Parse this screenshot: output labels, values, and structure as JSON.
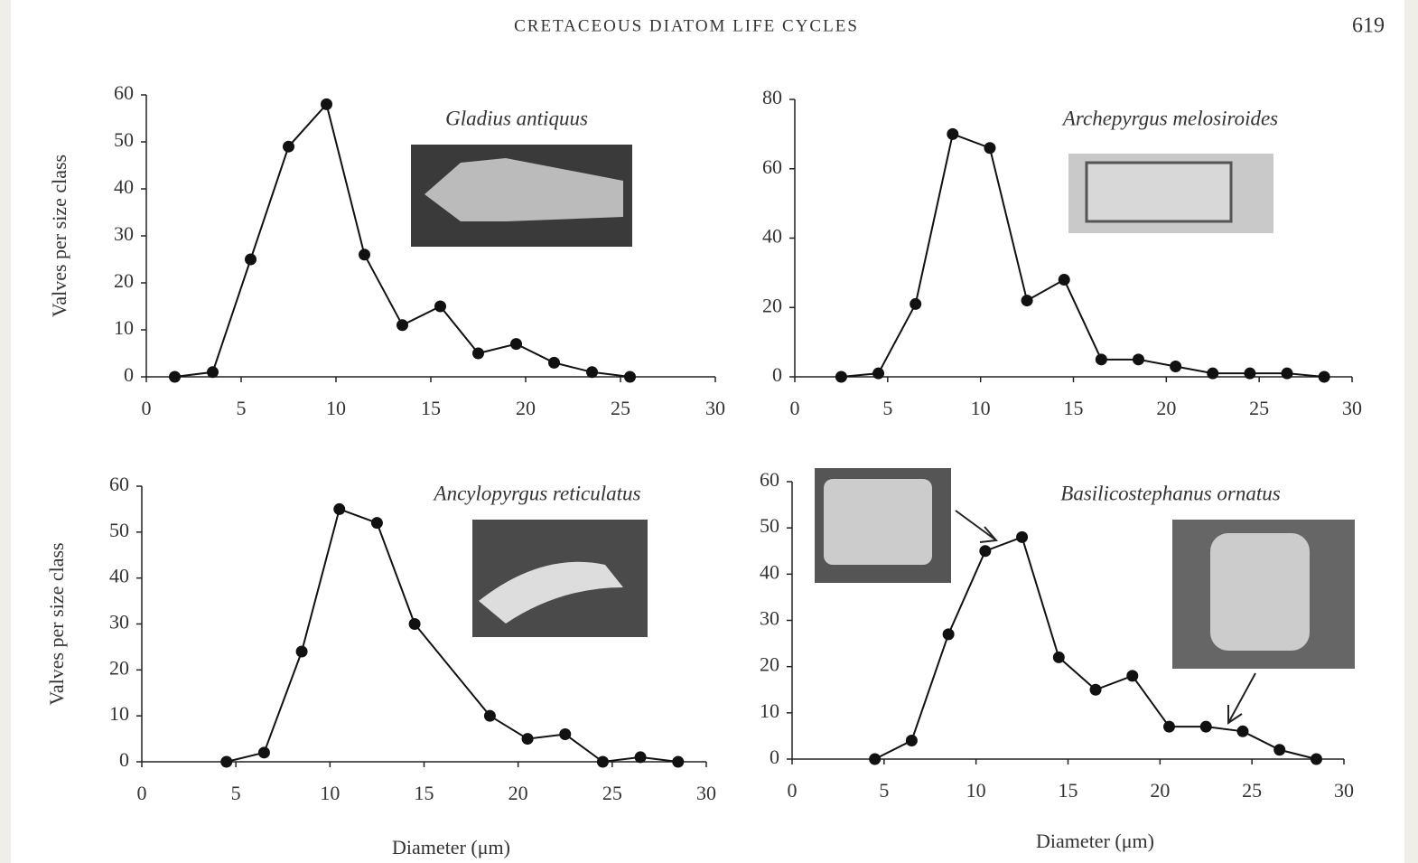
{
  "header": {
    "title": "CRETACEOUS DIATOM LIFE CYCLES",
    "page": "619"
  },
  "chart_data": [
    {
      "type": "line",
      "title": "Gladius antiquus",
      "ylabel": "Valves per size class",
      "color": "#111111",
      "x": [
        1.5,
        3.5,
        5.5,
        7.5,
        9.5,
        11.5,
        13.5,
        15.5,
        17.5,
        19.5,
        21.5,
        23.5,
        25.5
      ],
      "values": [
        0,
        1,
        25,
        49,
        58,
        26,
        11,
        15,
        5,
        7,
        3,
        1,
        0
      ],
      "xlim": [
        0,
        30
      ],
      "xticks": [
        0,
        5,
        10,
        15,
        20,
        25,
        30
      ],
      "ylim": [
        0,
        60
      ],
      "yticks": [
        0,
        10,
        20,
        30,
        40,
        50,
        60
      ]
    },
    {
      "type": "line",
      "title": "Archepyrgus melosiroides",
      "color": "#111111",
      "x": [
        2.5,
        4.5,
        6.5,
        8.5,
        10.5,
        12.5,
        14.5,
        16.5,
        18.5,
        20.5,
        22.5,
        24.5,
        26.5,
        28.5
      ],
      "values": [
        0,
        1,
        21,
        70,
        66,
        22,
        28,
        5,
        5,
        3,
        1,
        1,
        1,
        0
      ],
      "xlim": [
        0,
        30
      ],
      "xticks": [
        0,
        5,
        10,
        15,
        20,
        25,
        30
      ],
      "ylim": [
        0,
        80
      ],
      "yticks": [
        0,
        20,
        40,
        60,
        80
      ]
    },
    {
      "type": "line",
      "title": "Ancylopyrgus reticulatus",
      "ylabel": "Valves per size class",
      "xlabel": "Diameter (μm)",
      "color": "#111111",
      "x": [
        4.5,
        6.5,
        8.5,
        10.5,
        12.5,
        14.5,
        18.5,
        20.5,
        22.5,
        24.5,
        26.5,
        28.5
      ],
      "values": [
        0,
        2,
        24,
        55,
        52,
        30,
        10,
        5,
        6,
        0,
        1,
        0
      ],
      "xlim": [
        0,
        30
      ],
      "xticks": [
        0,
        5,
        10,
        15,
        20,
        25,
        30
      ],
      "ylim": [
        0,
        60
      ],
      "yticks": [
        0,
        10,
        20,
        30,
        40,
        50,
        60
      ]
    },
    {
      "type": "line",
      "title": "Basilicostephanus ornatus",
      "xlabel": "Diameter (μm)",
      "color": "#111111",
      "x": [
        4.5,
        6.5,
        8.5,
        10.5,
        12.5,
        14.5,
        16.5,
        18.5,
        20.5,
        22.5,
        24.5,
        26.5,
        28.5
      ],
      "values": [
        0,
        4,
        27,
        45,
        48,
        22,
        15,
        18,
        7,
        7,
        6,
        2,
        0
      ],
      "xlim": [
        0,
        30
      ],
      "xticks": [
        0,
        5,
        10,
        15,
        20,
        25,
        30
      ],
      "ylim": [
        0,
        60
      ],
      "yticks": [
        0,
        10,
        20,
        30,
        40,
        50,
        60
      ]
    }
  ]
}
